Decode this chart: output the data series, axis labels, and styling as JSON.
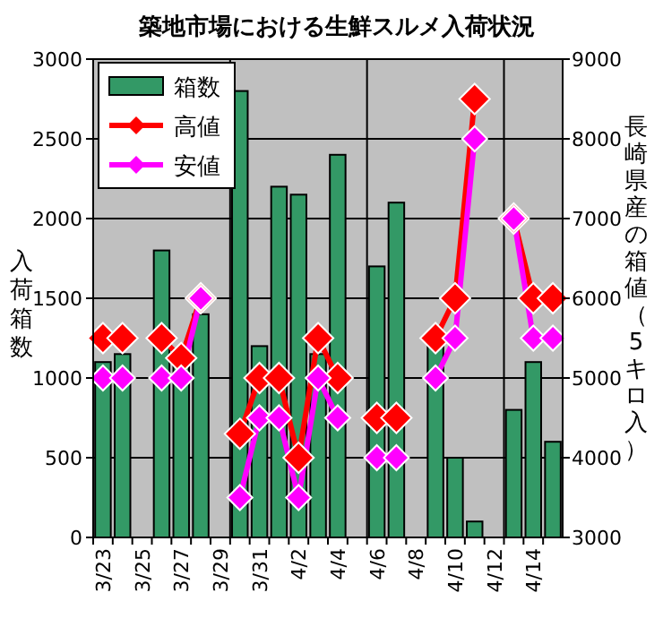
{
  "chart_data": {
    "type": "bar",
    "title": "築地市場における生鮮スルメ入荷状況",
    "ylabel": "入荷箱数",
    "y2label": "長崎県産の箱値（5キロ入）",
    "categories": [
      "3/23",
      null,
      "3/25",
      null,
      "3/27",
      null,
      "3/29",
      null,
      "3/31",
      null,
      "4/2",
      null,
      "4/4",
      null,
      "4/6",
      null,
      "4/8",
      null,
      "4/10",
      null,
      "4/12",
      null,
      "4/14",
      null
    ],
    "series": [
      {
        "name": "箱数",
        "color": "#339966",
        "values": [
          1100,
          1150,
          null,
          1800,
          1100,
          1400,
          null,
          2800,
          1200,
          2200,
          2150,
          1150,
          2400,
          null,
          1700,
          2100,
          null,
          1200,
          500,
          100,
          null,
          800,
          1100,
          600
        ]
      },
      {
        "name": "高値",
        "color": "#ff0000",
        "type": "line",
        "axis": "y2",
        "marker": "diamond",
        "values": [
          5500,
          5500,
          null,
          5500,
          5250,
          6000,
          null,
          4300,
          5000,
          5000,
          4000,
          5500,
          5000,
          null,
          4500,
          4500,
          null,
          5500,
          6000,
          8500,
          null,
          7000,
          6000,
          6000
        ]
      },
      {
        "name": "安値",
        "color": "#ff00ff",
        "type": "line",
        "axis": "y2",
        "marker": "diamond",
        "values": [
          5000,
          5000,
          null,
          5000,
          5000,
          6000,
          null,
          3500,
          4500,
          4500,
          3500,
          5000,
          4500,
          null,
          4000,
          4000,
          null,
          5000,
          5500,
          8000,
          null,
          7000,
          5500,
          5500
        ]
      }
    ],
    "ylim": [
      0,
      3000
    ],
    "yticks": [
      0,
      500,
      1000,
      1500,
      2000,
      2500,
      3000
    ],
    "y2lim": [
      3000,
      9000
    ],
    "y2ticks": [
      3000,
      4000,
      5000,
      6000,
      7000,
      8000,
      9000
    ],
    "grid": true,
    "legend": "top left"
  }
}
